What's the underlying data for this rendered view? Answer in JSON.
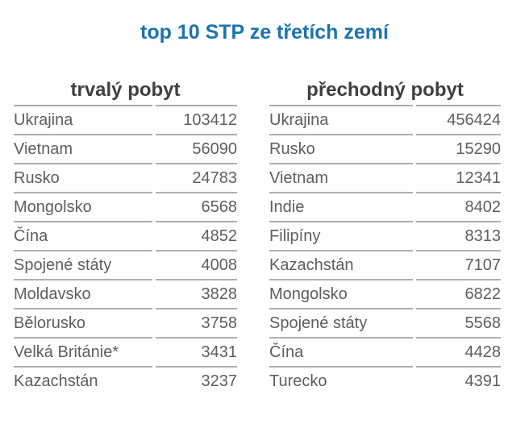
{
  "page": {
    "title": "top 10 STP ze třetích zemí"
  },
  "colors": {
    "background": "#FFFFFF",
    "title": "#1B74AE",
    "header_text": "#3F3F3F",
    "row_text": "#5E5E5E",
    "divider": "#AFAFAF"
  },
  "tables": [
    {
      "header": "trvalý pobyt",
      "rows": [
        {
          "country": "Ukrajina",
          "value": "103412"
        },
        {
          "country": "Vietnam",
          "value": "56090"
        },
        {
          "country": "Rusko",
          "value": "24783"
        },
        {
          "country": "Mongolsko",
          "value": "6568"
        },
        {
          "country": "Čína",
          "value": "4852"
        },
        {
          "country": "Spojené státy",
          "value": "4008"
        },
        {
          "country": "Moldavsko",
          "value": "3828"
        },
        {
          "country": "Bělorusko",
          "value": "3758"
        },
        {
          "country": "Velká Británie*",
          "value": "3431"
        },
        {
          "country": "Kazachstán",
          "value": "3237"
        }
      ]
    },
    {
      "header": "přechodný pobyt",
      "rows": [
        {
          "country": "Ukrajina",
          "value": "456424"
        },
        {
          "country": "Rusko",
          "value": "15290"
        },
        {
          "country": "Vietnam",
          "value": "12341"
        },
        {
          "country": "Indie",
          "value": "8402"
        },
        {
          "country": "Filipíny",
          "value": "8313"
        },
        {
          "country": "Kazachstán",
          "value": "7107"
        },
        {
          "country": "Mongolsko",
          "value": "6822"
        },
        {
          "country": "Spojené státy",
          "value": "5568"
        },
        {
          "country": "Čína",
          "value": "4428"
        },
        {
          "country": "Turecko",
          "value": "4391"
        }
      ]
    }
  ],
  "chart_data": [
    {
      "type": "table",
      "title": "trvalý pobyt",
      "categories": [
        "Ukrajina",
        "Vietnam",
        "Rusko",
        "Mongolsko",
        "Čína",
        "Spojené státy",
        "Moldavsko",
        "Bělorusko",
        "Velká Británie*",
        "Kazachstán"
      ],
      "values": [
        103412,
        56090,
        24783,
        6568,
        4852,
        4008,
        3828,
        3758,
        3431,
        3237
      ]
    },
    {
      "type": "table",
      "title": "přechodný pobyt",
      "categories": [
        "Ukrajina",
        "Rusko",
        "Vietnam",
        "Indie",
        "Filipíny",
        "Kazachstán",
        "Mongolsko",
        "Spojené státy",
        "Čína",
        "Turecko"
      ],
      "values": [
        456424,
        15290,
        12341,
        8402,
        8313,
        7107,
        6822,
        5568,
        4428,
        4391
      ]
    }
  ]
}
